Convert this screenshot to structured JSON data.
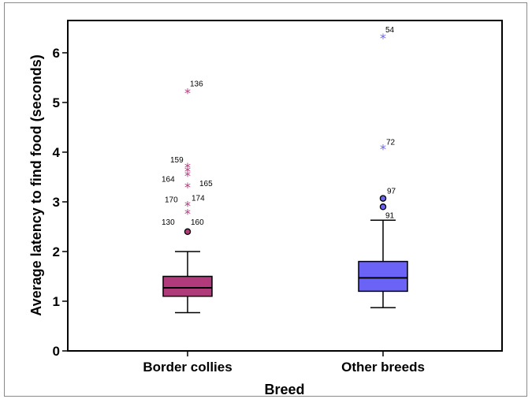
{
  "chart_data": {
    "type": "boxplot",
    "title": "",
    "xlabel": "Breed",
    "ylabel": "Average latency to find food (seconds)",
    "ylim": [
      0,
      6.65
    ],
    "yticks": [
      "0",
      "1",
      "2",
      "3",
      "4",
      "5",
      "6"
    ],
    "categories": [
      "Border collies",
      "Other breeds"
    ],
    "series": [
      {
        "name": "Border collies",
        "color": "#b03a7a",
        "min": 0.77,
        "q1": 1.1,
        "median": 1.27,
        "q3": 1.5,
        "max": 2.0,
        "outliers": [
          {
            "value": 2.4,
            "label": "130",
            "marker": "circle"
          },
          {
            "value": 2.4,
            "label": "160",
            "marker": "circle"
          },
          {
            "value": 2.77,
            "label": "",
            "marker": "star"
          },
          {
            "value": 2.93,
            "label": "170",
            "marker": "star"
          },
          {
            "value": 2.93,
            "label": "174",
            "marker": "star"
          },
          {
            "value": 3.3,
            "label": "165",
            "marker": "star"
          },
          {
            "value": 3.53,
            "label": "164",
            "marker": "star"
          },
          {
            "value": 3.62,
            "label": "",
            "marker": "star"
          },
          {
            "value": 3.7,
            "label": "159",
            "marker": "star"
          },
          {
            "value": 5.2,
            "label": "136",
            "marker": "star"
          }
        ]
      },
      {
        "name": "Other breeds",
        "color": "#6b63f5",
        "min": 0.87,
        "q1": 1.2,
        "median": 1.47,
        "q3": 1.8,
        "max": 2.63,
        "outliers": [
          {
            "value": 2.9,
            "label": "91",
            "marker": "circle"
          },
          {
            "value": 3.07,
            "label": "97",
            "marker": "circle"
          },
          {
            "value": 4.07,
            "label": "72",
            "marker": "star"
          },
          {
            "value": 6.3,
            "label": "54",
            "marker": "star"
          }
        ]
      }
    ],
    "grid": false,
    "legend": "none"
  }
}
